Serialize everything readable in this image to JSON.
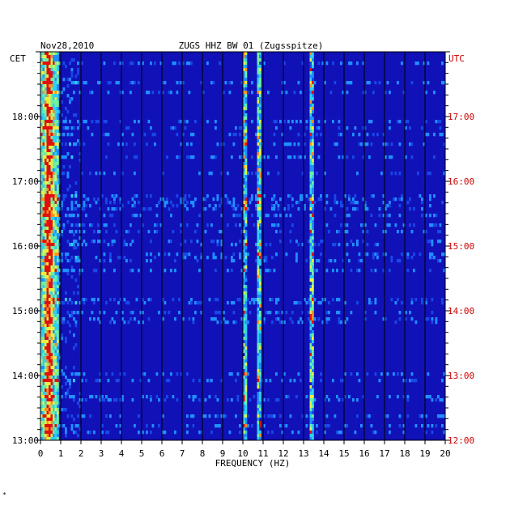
{
  "chart_data": {
    "type": "heatmap",
    "title_date": "Nov28,2010",
    "title_station": "ZUGS HHZ BW 01 (Zugsspitze)",
    "left_axis_title": "CET",
    "right_axis_title": "UTC",
    "xlabel": "FREQUENCY (HZ)",
    "x_ticks": [
      "0",
      "1",
      "2",
      "3",
      "4",
      "5",
      "6",
      "7",
      "8",
      "9",
      "10",
      "11",
      "12",
      "13",
      "14",
      "15",
      "16",
      "17",
      "18",
      "19",
      "20"
    ],
    "xlim": [
      0,
      20
    ],
    "time_range_cet_hours": [
      13,
      19
    ],
    "left_time_ticks": [
      {
        "hour": 18,
        "label": "18:00"
      },
      {
        "hour": 17,
        "label": "17:00"
      },
      {
        "hour": 16,
        "label": "16:00"
      },
      {
        "hour": 15,
        "label": "15:00"
      },
      {
        "hour": 14,
        "label": "14:00"
      },
      {
        "hour": 13,
        "label": "13:00"
      }
    ],
    "right_time_ticks": [
      {
        "hour": 18,
        "label": "17:00"
      },
      {
        "hour": 17,
        "label": "16:00"
      },
      {
        "hour": 16,
        "label": "15:00"
      },
      {
        "hour": 15,
        "label": "14:00"
      },
      {
        "hour": 14,
        "label": "13:00"
      },
      {
        "hour": 13,
        "label": "12:00"
      }
    ],
    "colors": {
      "background": "#1111b8",
      "grid": "#000000",
      "left_axis_text": "#000000",
      "right_axis_text": "#cc0000"
    },
    "dominant_features": [
      {
        "freq_hz": 0.4,
        "description": "strong microseism band"
      },
      {
        "freq_hz": 10.1,
        "description": "persistent tonal line"
      },
      {
        "freq_hz": 10.8,
        "description": "secondary tonal line"
      },
      {
        "freq_hz": 13.4,
        "description": "intermittent line"
      }
    ]
  },
  "footer_mark": "*"
}
